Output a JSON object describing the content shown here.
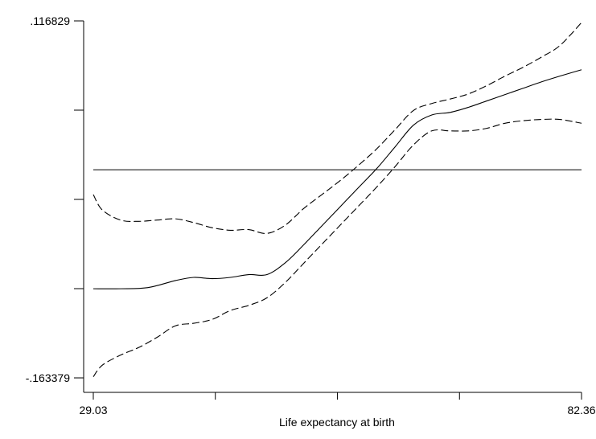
{
  "chart_data": {
    "type": "line",
    "title": "",
    "xlabel": "Life expectancy at birth",
    "ylabel": "",
    "xlim": [
      29.03,
      82.36
    ],
    "ylim": [
      -0.163379,
      0.116829
    ],
    "x_ticks": [
      29.03,
      42.36,
      55.7,
      69.03,
      82.36
    ],
    "x_tick_labels": [
      "29.03",
      "",
      "",
      "",
      "82.36"
    ],
    "y_ticks": [
      -0.163379,
      -0.093327,
      -0.023275,
      0.046777,
      0.116829
    ],
    "y_tick_labels": [
      "-.163379",
      "",
      "",
      "",
      ".116829"
    ],
    "grid": false,
    "legend": "none",
    "reference_line": {
      "y": 0,
      "style": "solid"
    },
    "series": [
      {
        "style": "solid",
        "x": [
          29.03,
          32.0,
          35.0,
          38.0,
          40.0,
          42.0,
          44.0,
          46.0,
          48.0,
          50.0,
          52.0,
          54.0,
          56.0,
          58.0,
          60.0,
          62.0,
          64.0,
          66.0,
          68.0,
          70.0,
          72.0,
          74.0,
          76.0,
          78.0,
          80.0,
          82.36
        ],
        "y": [
          -0.0934,
          -0.0934,
          -0.0925,
          -0.087,
          -0.0845,
          -0.0855,
          -0.0845,
          -0.0823,
          -0.0823,
          -0.073,
          -0.059,
          -0.044,
          -0.029,
          -0.014,
          0.001,
          0.018,
          0.035,
          0.043,
          0.045,
          0.049,
          0.054,
          0.059,
          0.064,
          0.069,
          0.0735,
          0.0785
        ]
      },
      {
        "style": "dashed",
        "x": [
          29.03,
          30.0,
          32.0,
          34.0,
          36.0,
          38.0,
          40.0,
          42.0,
          44.0,
          46.0,
          48.0,
          50.0,
          52.0,
          54.0,
          56.0,
          58.0,
          60.0,
          62.0,
          64.0,
          66.0,
          68.0,
          70.0,
          72.0,
          74.0,
          76.0,
          78.0,
          80.0,
          82.36
        ],
        "y": [
          -0.0195,
          -0.0315,
          -0.0395,
          -0.0405,
          -0.0395,
          -0.0385,
          -0.0415,
          -0.0455,
          -0.0475,
          -0.047,
          -0.05,
          -0.0435,
          -0.0305,
          -0.0195,
          -0.0085,
          0.0035,
          0.0165,
          0.0315,
          0.0465,
          0.052,
          0.0555,
          0.0595,
          0.066,
          0.0735,
          0.0805,
          0.0885,
          0.0975,
          0.1155
        ]
      },
      {
        "style": "dashed",
        "x": [
          29.03,
          30.0,
          32.0,
          34.0,
          36.0,
          38.0,
          40.0,
          42.0,
          44.0,
          46.0,
          48.0,
          50.0,
          52.0,
          54.0,
          56.0,
          58.0,
          60.0,
          62.0,
          64.0,
          66.0,
          68.0,
          70.0,
          72.0,
          74.0,
          76.0,
          78.0,
          80.0,
          82.36
        ],
        "y": [
          -0.1625,
          -0.1535,
          -0.1455,
          -0.1395,
          -0.1315,
          -0.1225,
          -0.1205,
          -0.1175,
          -0.1105,
          -0.1065,
          -0.1005,
          -0.0885,
          -0.0735,
          -0.0585,
          -0.0435,
          -0.0285,
          -0.0135,
          0.0025,
          0.0195,
          0.0305,
          0.0305,
          0.0305,
          0.0325,
          0.0365,
          0.0385,
          0.0395,
          0.0395,
          0.0365
        ]
      }
    ]
  }
}
